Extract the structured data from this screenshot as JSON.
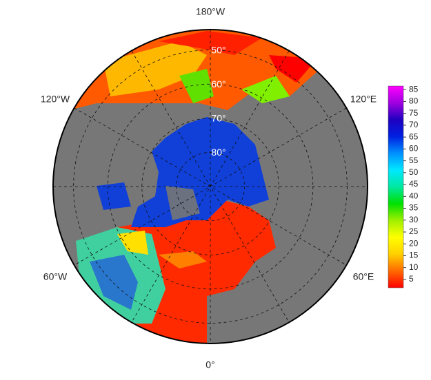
{
  "map": {
    "lon_labels": [
      "180°W",
      "120°E",
      "60°E",
      "0°",
      "60°W",
      "120°W"
    ],
    "lat_circles": [
      {
        "value": 50,
        "label": "50°"
      },
      {
        "value": 60,
        "label": "60°"
      },
      {
        "value": 70,
        "label": "70°"
      },
      {
        "value": 80,
        "label": "80°"
      }
    ],
    "colorbar": {
      "lim": [
        1.5,
        86.5
      ],
      "ticks": [
        5,
        10,
        15,
        20,
        25,
        30,
        35,
        40,
        45,
        50,
        55,
        60,
        65,
        70,
        75,
        80,
        85
      ],
      "colors": [
        "#ff0000",
        "#ff6a00",
        "#ffd000",
        "#ffff00",
        "#a0f000",
        "#00e000",
        "#00e8a0",
        "#00e8ff",
        "#0090ff",
        "#0020e0",
        "#2000c0",
        "#a000e0",
        "#ff00ff"
      ]
    }
  }
}
